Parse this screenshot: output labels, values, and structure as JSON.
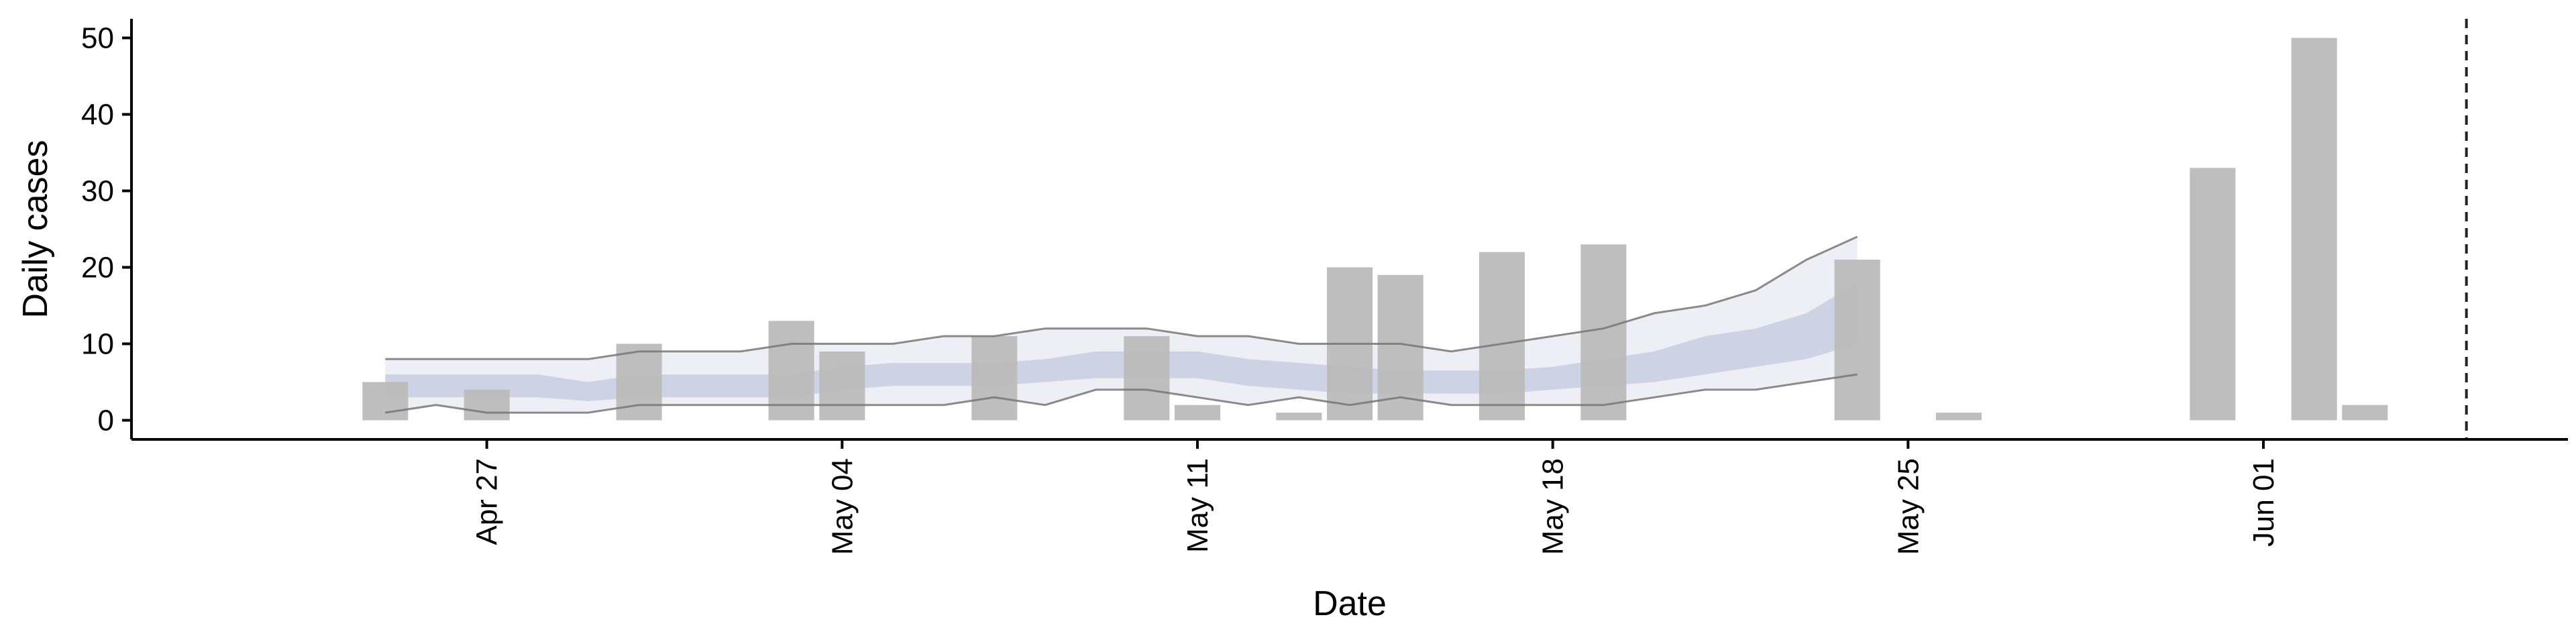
{
  "chart_data": {
    "type": "bar",
    "xlabel": "Date",
    "ylabel": "Daily cases",
    "xlim": [
      "2020-04-20",
      "2020-06-07"
    ],
    "ylim": [
      -2.5,
      52.5
    ],
    "y_ticks": [
      0,
      10,
      20,
      30,
      40,
      50
    ],
    "x_ticks": [
      {
        "date": "2020-04-27",
        "label": "Apr 27"
      },
      {
        "date": "2020-05-04",
        "label": "May 04"
      },
      {
        "date": "2020-05-11",
        "label": "May 11"
      },
      {
        "date": "2020-05-18",
        "label": "May 18"
      },
      {
        "date": "2020-05-25",
        "label": "May 25"
      },
      {
        "date": "2020-06-01",
        "label": "Jun 01"
      }
    ],
    "cases": [
      {
        "date": "2020-04-25",
        "value": 5
      },
      {
        "date": "2020-04-27",
        "value": 4
      },
      {
        "date": "2020-04-30",
        "value": 10
      },
      {
        "date": "2020-05-03",
        "value": 13
      },
      {
        "date": "2020-05-04",
        "value": 9
      },
      {
        "date": "2020-05-07",
        "value": 11
      },
      {
        "date": "2020-05-10",
        "value": 11
      },
      {
        "date": "2020-05-11",
        "value": 2
      },
      {
        "date": "2020-05-13",
        "value": 1
      },
      {
        "date": "2020-05-14",
        "value": 20
      },
      {
        "date": "2020-05-15",
        "value": 19
      },
      {
        "date": "2020-05-17",
        "value": 22
      },
      {
        "date": "2020-05-19",
        "value": 23
      },
      {
        "date": "2020-05-24",
        "value": 21
      },
      {
        "date": "2020-05-26",
        "value": 1
      },
      {
        "date": "2020-05-31",
        "value": 33
      },
      {
        "date": "2020-06-02",
        "value": 50
      },
      {
        "date": "2020-06-03",
        "value": 2
      }
    ],
    "estimate": {
      "dates": [
        "2020-04-25",
        "2020-04-26",
        "2020-04-27",
        "2020-04-28",
        "2020-04-29",
        "2020-04-30",
        "2020-05-01",
        "2020-05-02",
        "2020-05-03",
        "2020-05-04",
        "2020-05-05",
        "2020-05-06",
        "2020-05-07",
        "2020-05-08",
        "2020-05-09",
        "2020-05-10",
        "2020-05-11",
        "2020-05-12",
        "2020-05-13",
        "2020-05-14",
        "2020-05-15",
        "2020-05-16",
        "2020-05-17",
        "2020-05-18",
        "2020-05-19",
        "2020-05-20",
        "2020-05-21",
        "2020-05-22",
        "2020-05-23",
        "2020-05-24"
      ],
      "outer_lower": [
        1,
        2,
        1,
        1,
        1,
        2,
        2,
        2,
        2,
        2,
        2,
        2,
        3,
        2,
        4,
        4,
        3,
        2,
        3,
        2,
        3,
        2,
        2,
        2,
        2,
        3,
        4,
        4,
        5,
        6
      ],
      "outer_upper": [
        8,
        8,
        8,
        8,
        8,
        9,
        9,
        9,
        10,
        10,
        10,
        11,
        11,
        12,
        12,
        12,
        11,
        11,
        10,
        10,
        10,
        9,
        10,
        11,
        12,
        14,
        15,
        17,
        21,
        24
      ],
      "inner_lower": [
        3,
        3,
        3,
        3,
        2.5,
        3,
        3,
        3,
        3,
        4,
        4.5,
        4.5,
        4.5,
        5,
        5.5,
        5.5,
        5.5,
        4.5,
        4,
        3.5,
        3.5,
        3.5,
        3.5,
        4,
        4.5,
        5,
        6,
        7,
        8,
        10
      ],
      "inner_upper": [
        6,
        6,
        6,
        6,
        5,
        6,
        6,
        6,
        6,
        7,
        7.5,
        7.5,
        7.5,
        8,
        9,
        9,
        9,
        8,
        7.5,
        7,
        6.5,
        6.5,
        6.5,
        7,
        8,
        9,
        11,
        12,
        14,
        18
      ]
    },
    "reference_line": {
      "date": "2020-06-05",
      "style": "dashed"
    },
    "colors": {
      "bars": "#bbbbbb",
      "outer_band": "#eeeff5",
      "outer_line": "#777777",
      "inner_band": "#c7cee0",
      "reference_line": "#222222",
      "axis": "#000000"
    },
    "grid": false,
    "legend": "none"
  }
}
